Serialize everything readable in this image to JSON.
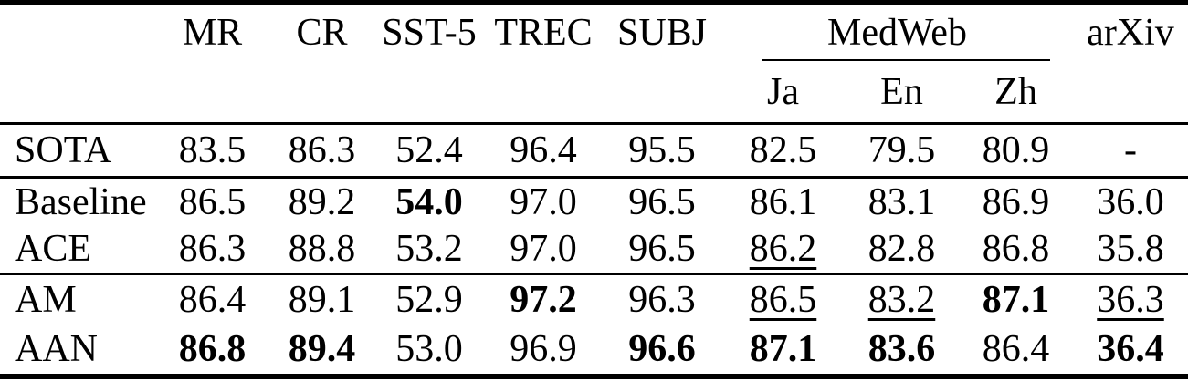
{
  "table": {
    "header": {
      "label_column": "",
      "columns": [
        "MR",
        "CR",
        "SST-5",
        "TREC",
        "SUBJ"
      ],
      "group": {
        "label": "MedWeb",
        "subcolumns": [
          "Ja",
          "En",
          "Zh"
        ]
      },
      "trailing_column": "arXiv"
    },
    "groups": [
      {
        "rows": [
          {
            "label": "SOTA",
            "cells": [
              {
                "v": "83.5"
              },
              {
                "v": "86.3"
              },
              {
                "v": "52.4"
              },
              {
                "v": "96.4"
              },
              {
                "v": "95.5"
              },
              {
                "v": "82.5"
              },
              {
                "v": "79.5"
              },
              {
                "v": "80.9"
              },
              {
                "v": "-"
              }
            ]
          }
        ]
      },
      {
        "rows": [
          {
            "label": "Baseline",
            "cells": [
              {
                "v": "86.5"
              },
              {
                "v": "89.2"
              },
              {
                "v": "54.0",
                "bold": true
              },
              {
                "v": "97.0"
              },
              {
                "v": "96.5"
              },
              {
                "v": "86.1"
              },
              {
                "v": "83.1"
              },
              {
                "v": "86.9"
              },
              {
                "v": "36.0"
              }
            ]
          },
          {
            "label": "ACE",
            "cells": [
              {
                "v": "86.3"
              },
              {
                "v": "88.8"
              },
              {
                "v": "53.2"
              },
              {
                "v": "97.0"
              },
              {
                "v": "96.5"
              },
              {
                "v": "86.2",
                "underline": true
              },
              {
                "v": "82.8"
              },
              {
                "v": "86.8"
              },
              {
                "v": "35.8"
              }
            ]
          }
        ]
      },
      {
        "rows": [
          {
            "label": "AM",
            "cells": [
              {
                "v": "86.4"
              },
              {
                "v": "89.1"
              },
              {
                "v": "52.9"
              },
              {
                "v": "97.2",
                "bold": true
              },
              {
                "v": "96.3"
              },
              {
                "v": "86.5",
                "underline": true
              },
              {
                "v": "83.2",
                "underline": true
              },
              {
                "v": "87.1",
                "bold": true
              },
              {
                "v": "36.3",
                "underline": true
              }
            ]
          },
          {
            "label": "AAN",
            "cells": [
              {
                "v": "86.8",
                "bold": true
              },
              {
                "v": "89.4",
                "bold": true
              },
              {
                "v": "53.0"
              },
              {
                "v": "96.9"
              },
              {
                "v": "96.6",
                "bold": true
              },
              {
                "v": "87.1",
                "bold": true
              },
              {
                "v": "83.6",
                "bold": true
              },
              {
                "v": "86.4"
              },
              {
                "v": "36.4",
                "bold": true
              }
            ]
          }
        ]
      }
    ],
    "colors": {
      "text": "#000000",
      "background": "#ffffff",
      "rule": "#000000"
    }
  }
}
